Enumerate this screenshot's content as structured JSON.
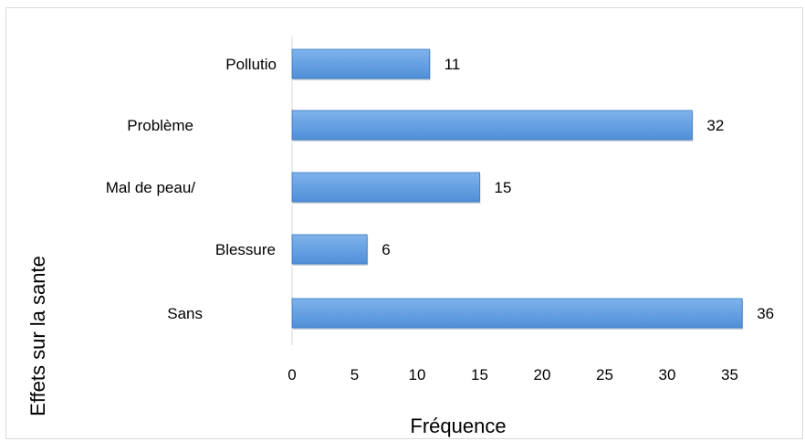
{
  "chart_data": {
    "type": "bar",
    "orientation": "horizontal",
    "categories": [
      "Pollutio",
      "Problème",
      "Mal de peau/",
      "Blessure",
      "Sans"
    ],
    "values": [
      11,
      32,
      15,
      6,
      36
    ],
    "xlabel": "Fréquence",
    "ylabel": "Effets sur la sante",
    "xlim": [
      0,
      35
    ],
    "xticks": [
      "0",
      "5",
      "10",
      "15",
      "20",
      "25",
      "30",
      "35"
    ],
    "grid": false,
    "legend": "none",
    "bar_color": "#4f8fd8",
    "bar_color_light": "#7fb3ec",
    "bar_edge_color": "#3a75bd"
  }
}
